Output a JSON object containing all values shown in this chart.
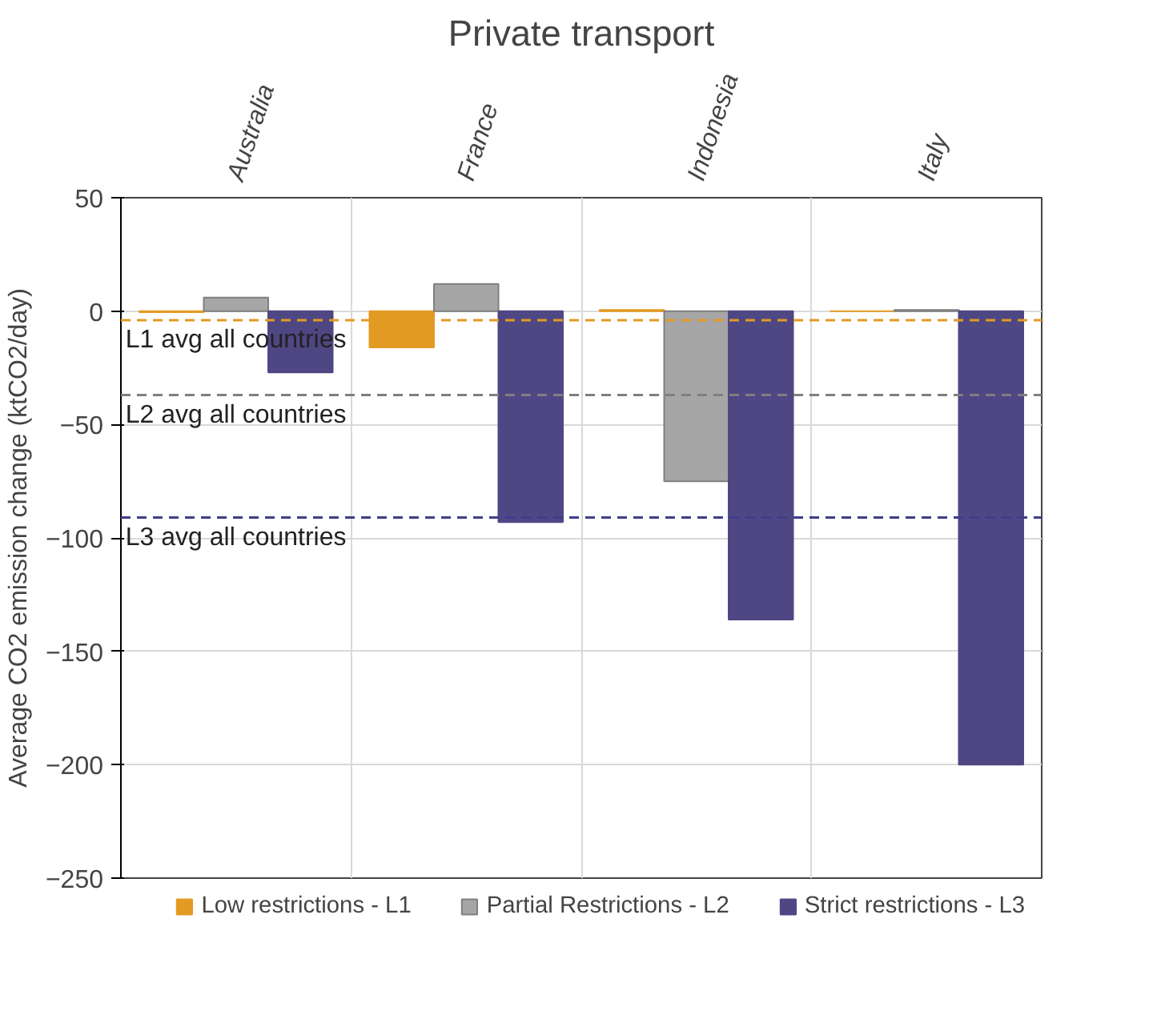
{
  "chart_data": {
    "type": "bar",
    "title": "Private transport",
    "ylabel": "Average CO2 emission change (ktCO2/day)",
    "categories": [
      "Australia",
      "France",
      "Indonesia",
      "Italy"
    ],
    "series": [
      {
        "name": "Low restrictions - L1",
        "color": "#e39a22",
        "values": [
          -0.5,
          -16,
          0.5,
          0
        ]
      },
      {
        "name": "Partial Restrictions - L2",
        "color": "#a6a6a6",
        "values": [
          6,
          12,
          -75,
          0.5
        ]
      },
      {
        "name": "Strict restrictions - L3",
        "color": "#4f4784",
        "values": [
          -27,
          -93,
          -136,
          -200
        ]
      }
    ],
    "ylim": [
      -250,
      50
    ],
    "yticks": [
      -250,
      -200,
      -150,
      -100,
      -50,
      0,
      50
    ],
    "grid": true,
    "legend": "bottom",
    "ref_lines": [
      {
        "axis": "y",
        "value": -4,
        "label": "L1 avg all countries",
        "color": "#e39a22",
        "line_style": "dashed"
      },
      {
        "axis": "y",
        "value": -37,
        "label": "L2 avg all countries",
        "color": "#7f7f7f",
        "line_style": "dashed"
      },
      {
        "axis": "y",
        "value": -91,
        "label": "L3 avg all countries",
        "color": "#3f3d8c",
        "line_style": "dashed"
      }
    ]
  }
}
